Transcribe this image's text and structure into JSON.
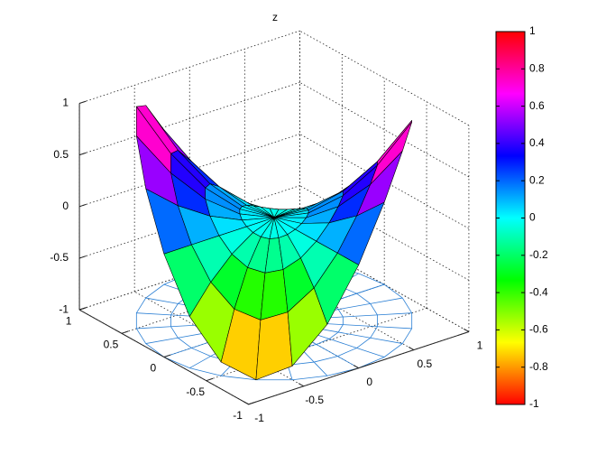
{
  "chart_data": {
    "type": "surface",
    "title": "z",
    "view": {
      "azimuth": -37.5,
      "elevation": 30
    },
    "r": [
      0,
      0.25,
      0.5,
      0.75,
      1
    ],
    "theta": [
      0,
      15,
      30,
      45,
      60,
      75,
      90,
      105,
      120,
      135,
      150,
      165,
      180,
      195,
      210,
      225,
      240,
      255,
      270,
      285,
      300,
      315,
      330,
      345,
      360
    ],
    "z": [
      [
        0,
        0,
        0,
        0,
        0,
        0,
        0,
        0,
        0,
        0,
        0,
        0,
        0,
        0,
        0,
        0,
        0,
        0,
        0,
        0,
        0,
        0,
        0,
        0,
        0
      ],
      [
        0,
        -0.031,
        -0.054,
        -0.063,
        -0.054,
        -0.031,
        0,
        0.031,
        0.054,
        0.063,
        0.054,
        0.031,
        0,
        -0.031,
        -0.054,
        -0.063,
        -0.054,
        -0.031,
        0,
        0.031,
        0.054,
        0.063,
        0.054,
        0.031,
        0
      ],
      [
        0,
        -0.125,
        -0.217,
        -0.25,
        -0.217,
        -0.125,
        0,
        0.125,
        0.217,
        0.25,
        0.217,
        0.125,
        0,
        -0.125,
        -0.217,
        -0.25,
        -0.217,
        -0.125,
        0,
        0.125,
        0.217,
        0.25,
        0.217,
        0.125,
        0
      ],
      [
        0,
        -0.281,
        -0.487,
        -0.563,
        -0.487,
        -0.281,
        0,
        0.281,
        0.487,
        0.563,
        0.487,
        0.281,
        0,
        -0.281,
        -0.487,
        -0.563,
        -0.487,
        -0.281,
        0,
        0.281,
        0.487,
        0.563,
        0.487,
        0.281,
        0
      ],
      [
        0,
        -0.5,
        -0.866,
        -1,
        -0.866,
        -0.5,
        0,
        0.5,
        0.866,
        1,
        0.866,
        0.5,
        0,
        -0.5,
        -0.866,
        -1,
        -0.866,
        -0.5,
        0,
        0.5,
        0.866,
        1,
        0.866,
        0.5,
        0
      ]
    ],
    "xlim": [
      -1,
      1
    ],
    "ylim": [
      -1,
      1
    ],
    "zlim": [
      -1,
      1
    ],
    "xticks": [
      -1,
      -0.5,
      0,
      0.5,
      1
    ],
    "yticks": [
      -1,
      -0.5,
      0,
      0.5,
      1
    ],
    "zticks": [
      -1,
      -0.5,
      0,
      0.5,
      1
    ],
    "grid": true,
    "colormap": "hsv",
    "clim": [
      -1,
      1
    ],
    "colorbar_ticks": [
      -1,
      -0.8,
      -0.6,
      -0.4,
      -0.2,
      0,
      0.2,
      0.4,
      0.6,
      0.8,
      1
    ],
    "floor_mesh_color": "#2a7fd4"
  }
}
